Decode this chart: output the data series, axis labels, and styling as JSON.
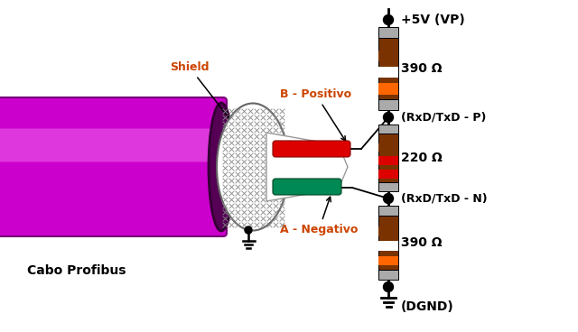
{
  "bg_color": "#ffffff",
  "cable_color": "#cc00cc",
  "cable_dark": "#880088",
  "cable_highlight": "#ee66ee",
  "shield_color": "#bbbbbb",
  "wire_red": "#dd0000",
  "wire_green": "#008855",
  "resistor_orange": "#ff6600",
  "resistor_brown": "#7a3300",
  "resistor_red": "#dd0000",
  "resistor_gray": "#aaaaaa",
  "resistor_white": "#ffffff",
  "text_color": "#000000",
  "label_shield": "Shield",
  "label_cabo": "Cabo Profibus",
  "label_b": "B - Positivo",
  "label_a": "A - Negativo",
  "label_5v": "+5V (VP)",
  "label_390_1": "390 Ω",
  "label_rxp": "(RxD/TxD - P)",
  "label_220": "220 Ω",
  "label_rxn": "(RxD/TxD - N)",
  "label_390_2": "390 Ω",
  "label_dgnd": "(DGND)",
  "shield_label_color": "#cc4400",
  "b_label_color": "#cc4400",
  "a_label_color": "#cc4400"
}
